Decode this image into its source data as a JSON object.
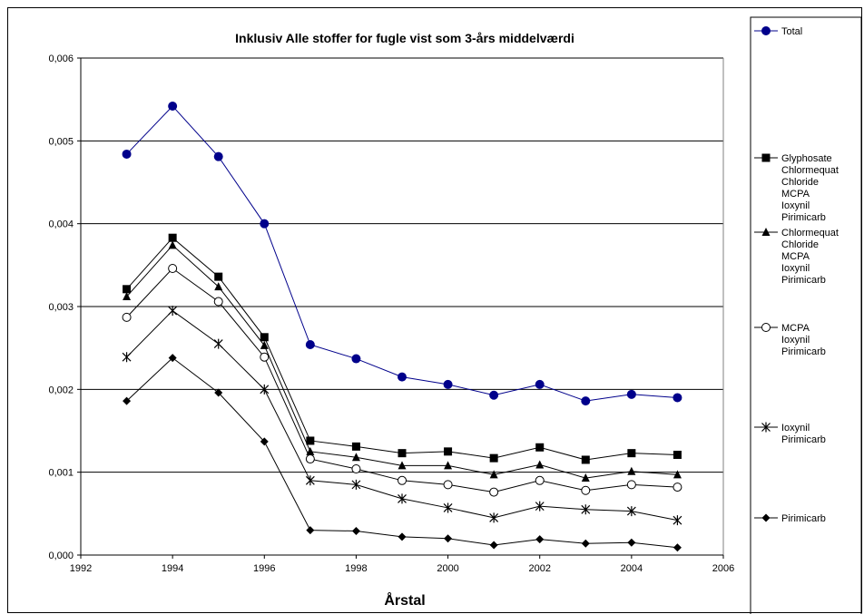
{
  "chart_data": {
    "type": "line",
    "title": "Inklusiv Alle stoffer for fugle vist som 3-års middelværdi",
    "xlabel": "Årstal",
    "ylabel": "",
    "xlim": [
      1992,
      2006
    ],
    "ylim": [
      0,
      0.006
    ],
    "x_ticks": [
      "1992",
      "1994",
      "1996",
      "1998",
      "2000",
      "2002",
      "2004",
      "2006"
    ],
    "y_ticks": [
      "0,000",
      "0,001",
      "0,002",
      "0,003",
      "0,004",
      "0,005",
      "0,006"
    ],
    "grid": "horizontal",
    "legend_position": "right",
    "x": [
      1993,
      1994,
      1995,
      1996,
      1997,
      1998,
      1999,
      2000,
      2001,
      2002,
      2003,
      2004,
      2005
    ],
    "series": [
      {
        "name": "Total",
        "legend_lines": [
          "Total"
        ],
        "marker": "circle-filled",
        "color": "#00008B",
        "values": [
          0.00484,
          0.00542,
          0.00481,
          0.004,
          0.00254,
          0.00237,
          0.00215,
          0.00206,
          0.00193,
          0.00206,
          0.00186,
          0.00194,
          0.0019
        ]
      },
      {
        "name": "Glyphosate Chlormequat Chloride MCPA Ioxynil Pirimicarb",
        "legend_lines": [
          "Glyphosate",
          "Chlormequat",
          "Chloride",
          "MCPA",
          "Ioxynil",
          "Pirimicarb"
        ],
        "marker": "square-filled",
        "color": "#000000",
        "values": [
          0.00321,
          0.00383,
          0.00336,
          0.00263,
          0.00138,
          0.00131,
          0.00123,
          0.00125,
          0.00117,
          0.0013,
          0.00115,
          0.00123,
          0.00121
        ]
      },
      {
        "name": "Chlormequat Chloride MCPA Ioxynil Pirimicarb",
        "legend_lines": [
          "Chlormequat",
          "Chloride",
          "MCPA",
          "Ioxynil",
          "Pirimicarb"
        ],
        "marker": "triangle-filled",
        "color": "#000000",
        "values": [
          0.00312,
          0.00374,
          0.00324,
          0.00253,
          0.00125,
          0.00118,
          0.00108,
          0.00108,
          0.00097,
          0.00109,
          0.00093,
          0.00101,
          0.00097
        ]
      },
      {
        "name": "MCPA Ioxynil Pirimicarb",
        "legend_lines": [
          "MCPA",
          "Ioxynil",
          "Pirimicarb"
        ],
        "marker": "circle-open",
        "color": "#000000",
        "values": [
          0.00287,
          0.00346,
          0.00306,
          0.00239,
          0.00116,
          0.00104,
          0.0009,
          0.00085,
          0.00076,
          0.0009,
          0.00078,
          0.00085,
          0.00082
        ]
      },
      {
        "name": "Ioxynil Pirimicarb",
        "legend_lines": [
          "Ioxynil",
          "Pirimicarb"
        ],
        "marker": "star",
        "color": "#000000",
        "values": [
          0.00239,
          0.00295,
          0.00255,
          0.002,
          0.0009,
          0.00085,
          0.00068,
          0.00057,
          0.00045,
          0.00059,
          0.00055,
          0.00053,
          0.00042
        ]
      },
      {
        "name": "Pirimicarb",
        "legend_lines": [
          "Pirimicarb"
        ],
        "marker": "diamond-filled",
        "color": "#000000",
        "values": [
          0.00186,
          0.00238,
          0.00196,
          0.00137,
          0.0003,
          0.00029,
          0.00022,
          0.0002,
          0.00012,
          0.00019,
          0.00014,
          0.00015,
          9e-05
        ]
      }
    ]
  }
}
